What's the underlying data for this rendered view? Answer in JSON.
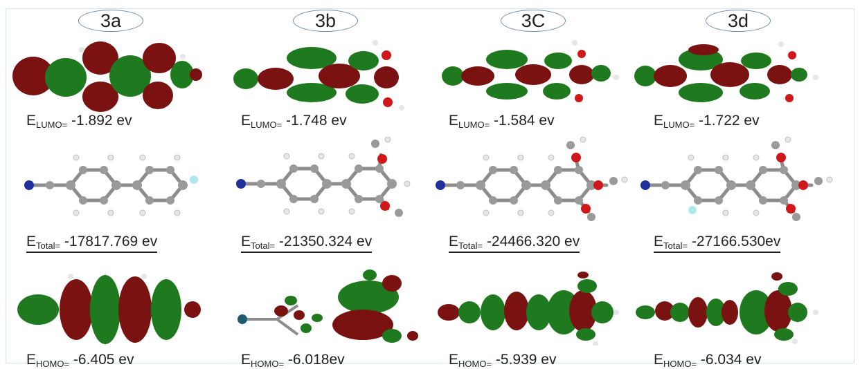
{
  "colors": {
    "lobe_red": "#7a1212",
    "lobe_green": "#1f7a1f",
    "carbon": "#9a9a9a",
    "hydrogen": "#e6e6e6",
    "nitrogen": "#1f2f9c",
    "oxygen": "#d01818",
    "fluorine": "#aee8ee"
  },
  "columns": [
    {
      "id": "3a",
      "title": "3a",
      "lumo_sub": "LUMO=",
      "lumo_value": "-1.892 ev",
      "total_sub": "Total=",
      "total_value": "-17817.769 ev",
      "homo_sub": "HOMO=",
      "homo_value": "-6.405 ev"
    },
    {
      "id": "3b",
      "title": "3b",
      "lumo_sub": "LUMO=",
      "lumo_value": "-1.748 ev",
      "total_sub": "Total=",
      "total_value": "-21350.324 ev",
      "homo_sub": "HOMO=",
      "homo_value": "-6.018ev"
    },
    {
      "id": "3c",
      "title": "3C",
      "lumo_sub": "LUMO=",
      "lumo_value": "-1.584 ev",
      "total_sub": "Total=",
      "total_value": "-24466.320 ev",
      "homo_sub": "HOMO=",
      "homo_value": "-5.939 ev"
    },
    {
      "id": "3d",
      "title": "3d",
      "lumo_sub": "LUMO=",
      "lumo_value": "-1.722 ev",
      "total_sub": "Total=",
      "total_value": "-27166.530ev",
      "homo_sub": "HOMO=",
      "homo_value": "-6.034 ev"
    }
  ]
}
